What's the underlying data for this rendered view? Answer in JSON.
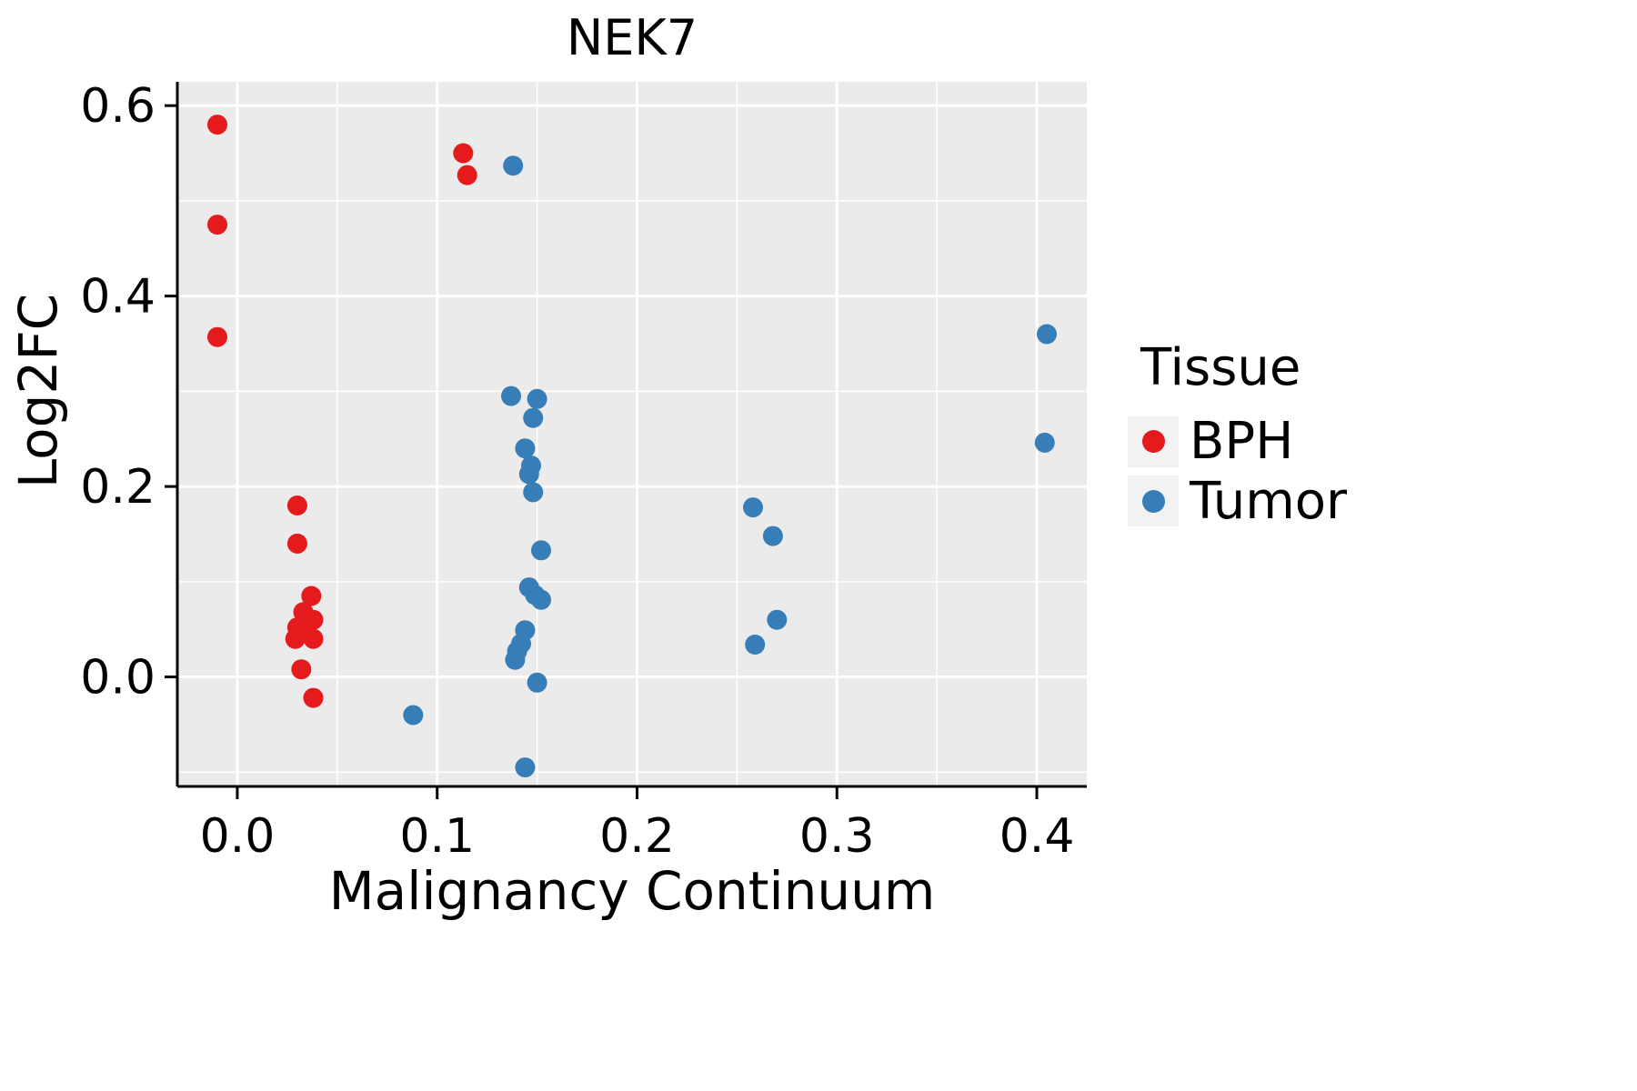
{
  "chart_data": {
    "type": "scatter",
    "title": "NEK7",
    "xlabel": "Malignancy Continuum",
    "ylabel": "Log2FC",
    "xlim": [
      -0.03,
      0.425
    ],
    "ylim": [
      -0.115,
      0.625
    ],
    "x_ticks": [
      0.0,
      0.1,
      0.2,
      0.3,
      0.4
    ],
    "y_ticks": [
      0.0,
      0.2,
      0.4,
      0.6
    ],
    "grid": true,
    "panel_background": "#EBEBEB",
    "grid_color": "#FFFFFF",
    "legend_title": "Tissue",
    "legend_position": "right",
    "point_radius": 11,
    "series": [
      {
        "name": "BPH",
        "color": "#E41A1C",
        "points": [
          [
            -0.01,
            0.58
          ],
          [
            -0.01,
            0.475
          ],
          [
            -0.01,
            0.357
          ],
          [
            0.113,
            0.55
          ],
          [
            0.115,
            0.527
          ],
          [
            0.03,
            0.18
          ],
          [
            0.03,
            0.14
          ],
          [
            0.037,
            0.085
          ],
          [
            0.033,
            0.068
          ],
          [
            0.038,
            0.06
          ],
          [
            0.03,
            0.052
          ],
          [
            0.034,
            0.046
          ],
          [
            0.029,
            0.04
          ],
          [
            0.038,
            0.04
          ],
          [
            0.032,
            0.008
          ],
          [
            0.038,
            -0.022
          ]
        ]
      },
      {
        "name": "Tumor",
        "color": "#377EB8",
        "points": [
          [
            0.138,
            0.537
          ],
          [
            0.405,
            0.36
          ],
          [
            0.404,
            0.246
          ],
          [
            0.137,
            0.295
          ],
          [
            0.15,
            0.292
          ],
          [
            0.148,
            0.272
          ],
          [
            0.144,
            0.24
          ],
          [
            0.147,
            0.222
          ],
          [
            0.146,
            0.213
          ],
          [
            0.148,
            0.194
          ],
          [
            0.152,
            0.133
          ],
          [
            0.258,
            0.178
          ],
          [
            0.268,
            0.148
          ],
          [
            0.146,
            0.094
          ],
          [
            0.149,
            0.086
          ],
          [
            0.152,
            0.081
          ],
          [
            0.144,
            0.049
          ],
          [
            0.142,
            0.035
          ],
          [
            0.14,
            0.027
          ],
          [
            0.139,
            0.018
          ],
          [
            0.15,
            -0.006
          ],
          [
            0.088,
            -0.04
          ],
          [
            0.144,
            -0.095
          ],
          [
            0.259,
            0.034
          ],
          [
            0.27,
            0.06
          ]
        ]
      }
    ]
  }
}
